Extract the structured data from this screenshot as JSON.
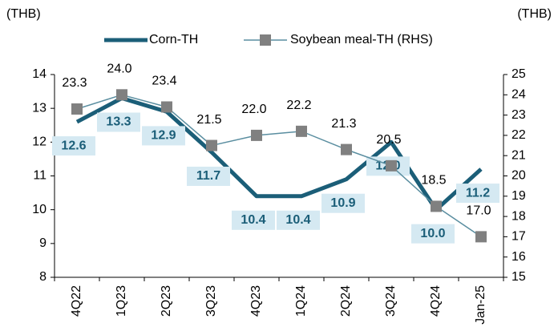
{
  "chart_data": {
    "type": "line",
    "y_label": "(THB)",
    "y2_label": "(THB)",
    "categories": [
      "4Q22",
      "1Q23",
      "2Q23",
      "3Q23",
      "4Q23",
      "1Q24",
      "2Q24",
      "3Q24",
      "4Q24",
      "Jan-25"
    ],
    "series": [
      {
        "name": "Corn-TH",
        "color": "#1b5e78",
        "axis": "y",
        "values": [
          12.6,
          13.3,
          12.9,
          11.7,
          10.4,
          10.4,
          10.9,
          12.0,
          10.0,
          11.2
        ],
        "value_labels": [
          "12.6",
          "13.3",
          "12.9",
          "11.7",
          "10.4",
          "10.4",
          "10.9",
          "12.0",
          "10.0",
          "11.2"
        ]
      },
      {
        "name": "Soybean meal-TH (RHS)",
        "color": "#5a8ea0",
        "marker_color": "#808080",
        "axis": "y2",
        "values": [
          23.3,
          24.0,
          23.4,
          21.5,
          22.0,
          22.2,
          21.3,
          20.5,
          18.5,
          17.0
        ],
        "value_labels": [
          "23.3",
          "24.0",
          "23.4",
          "21.5",
          "22.0",
          "22.2",
          "21.3",
          "20.5",
          "18.5",
          "17.0"
        ]
      }
    ],
    "ylim": [
      8,
      14
    ],
    "yticks": [
      8,
      9,
      10,
      11,
      12,
      13,
      14
    ],
    "y2lim": [
      15,
      25
    ],
    "y2ticks": [
      15,
      16,
      17,
      18,
      19,
      20,
      21,
      22,
      23,
      24,
      25
    ],
    "grid": false
  }
}
